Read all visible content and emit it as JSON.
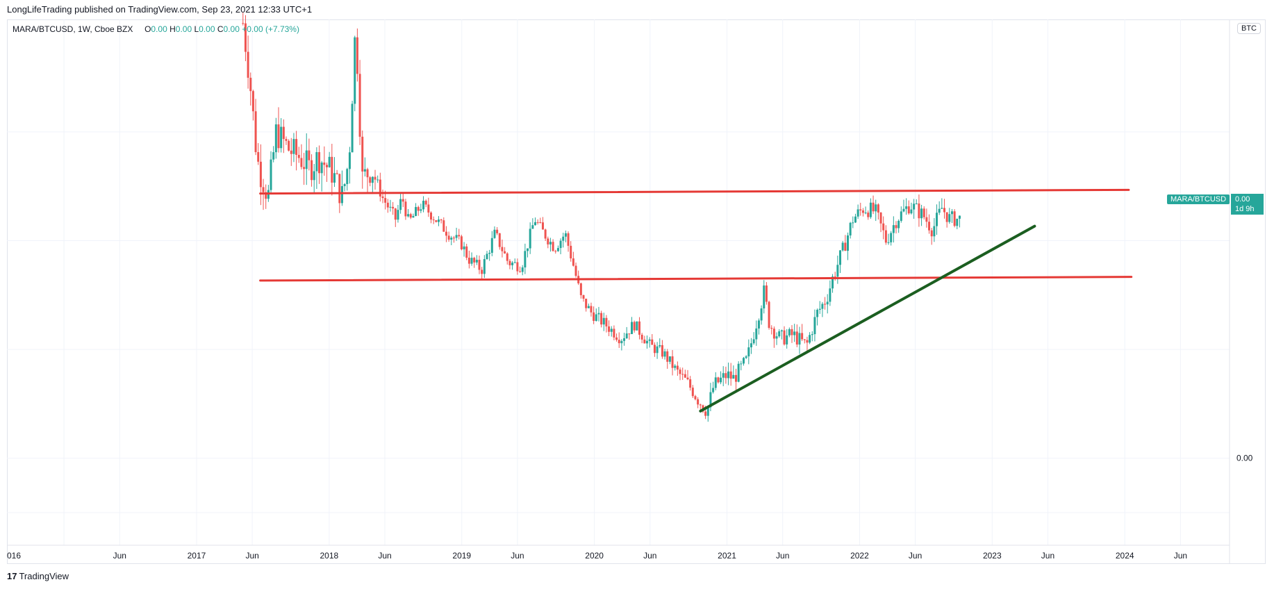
{
  "header": {
    "published_line": "LongLifeTrading published on TradingView.com, Sep 23, 2021 12:33 UTC+1"
  },
  "legend": {
    "symbol": "MARA/BTCUSD, 1W, Cboe BZX",
    "o_label": "O",
    "o_value": "0.00",
    "h_label": "H",
    "h_value": "0.00",
    "l_label": "L",
    "l_value": "0.00",
    "c_label": "C",
    "c_value": "0.00",
    "change": "+0.00 (+7.73%)"
  },
  "currency_badge": "BTC",
  "price_tag": {
    "symbol": "MARA/BTCUSD",
    "value": "0.00",
    "countdown": "1d 9h"
  },
  "footer": {
    "brand_mark": "17",
    "brand_name": "TradingView"
  },
  "colors": {
    "up": "#26a69a",
    "down": "#ef5350",
    "resistance": "#e53935",
    "trendline": "#1b5e20",
    "grid": "#f0f3fa"
  },
  "chart_data": {
    "type": "candlestick",
    "title": "",
    "x_ticks": [
      "016",
      "Jun",
      "2017",
      "Jun",
      "2018",
      "Jun",
      "2019",
      "Jun",
      "2020",
      "Jun",
      "2021",
      "Jun",
      "2022",
      "Jun",
      "2023",
      "Jun",
      "2024",
      "Jun"
    ],
    "x_tick_dates": [
      2016.0,
      2016.42,
      2017.0,
      2017.42,
      2018.0,
      2018.42,
      2019.0,
      2019.42,
      2020.0,
      2020.42,
      2021.0,
      2021.42,
      2022.0,
      2022.42,
      2023.0,
      2023.42,
      2024.0,
      2024.42
    ],
    "x_range": [
      2015.57,
      2024.79
    ],
    "y_ticks": [
      "0.00"
    ],
    "y_tick_values": [
      0
    ],
    "y_range": [
      -0.24,
      1.21
    ],
    "y_scale": "linear",
    "grid": true,
    "price_series": [
      [
        2017.35,
        1.2
      ],
      [
        2017.4,
        1.05
      ],
      [
        2017.45,
        0.85
      ],
      [
        2017.47,
        0.8
      ],
      [
        2017.5,
        0.77
      ],
      [
        2017.54,
        0.72
      ],
      [
        2017.6,
        0.9
      ],
      [
        2017.7,
        0.85
      ],
      [
        2017.78,
        0.83
      ],
      [
        2017.85,
        0.8
      ],
      [
        2017.92,
        0.83
      ],
      [
        2018.02,
        0.79
      ],
      [
        2018.1,
        0.72
      ],
      [
        2018.15,
        0.83
      ],
      [
        2018.2,
        1.2
      ],
      [
        2018.25,
        0.77
      ],
      [
        2018.32,
        0.8
      ],
      [
        2018.4,
        0.72
      ],
      [
        2018.5,
        0.66
      ],
      [
        2018.55,
        0.72
      ],
      [
        2018.6,
        0.65
      ],
      [
        2018.7,
        0.7
      ],
      [
        2018.8,
        0.66
      ],
      [
        2018.9,
        0.62
      ],
      [
        2019.0,
        0.59
      ],
      [
        2019.05,
        0.55
      ],
      [
        2019.15,
        0.52
      ],
      [
        2019.25,
        0.62
      ],
      [
        2019.35,
        0.54
      ],
      [
        2019.45,
        0.53
      ],
      [
        2019.55,
        0.66
      ],
      [
        2019.6,
        0.63
      ],
      [
        2019.7,
        0.58
      ],
      [
        2019.78,
        0.62
      ],
      [
        2019.85,
        0.52
      ],
      [
        2019.9,
        0.44
      ],
      [
        2019.98,
        0.4
      ],
      [
        2020.08,
        0.37
      ],
      [
        2020.2,
        0.33
      ],
      [
        2020.3,
        0.37
      ],
      [
        2020.42,
        0.31
      ],
      [
        2020.52,
        0.29
      ],
      [
        2020.62,
        0.24
      ],
      [
        2020.7,
        0.21
      ],
      [
        2020.78,
        0.16
      ],
      [
        2020.85,
        0.13
      ],
      [
        2020.9,
        0.2
      ],
      [
        2021.0,
        0.23
      ],
      [
        2021.05,
        0.22
      ],
      [
        2021.15,
        0.27
      ],
      [
        2021.28,
        0.46
      ],
      [
        2021.32,
        0.37
      ],
      [
        2021.4,
        0.33
      ],
      [
        2021.5,
        0.34
      ],
      [
        2021.6,
        0.31
      ],
      [
        2021.68,
        0.4
      ],
      [
        2021.75,
        0.44
      ],
      [
        2021.8,
        0.5
      ],
      [
        2021.88,
        0.58
      ],
      [
        2021.95,
        0.66
      ],
      [
        2022.03,
        0.69
      ],
      [
        2022.12,
        0.68
      ],
      [
        2022.2,
        0.6
      ],
      [
        2022.28,
        0.66
      ],
      [
        2022.38,
        0.7
      ],
      [
        2022.48,
        0.67
      ],
      [
        2022.55,
        0.63
      ],
      [
        2022.62,
        0.69
      ],
      [
        2022.68,
        0.66
      ],
      [
        2022.76,
        0.66
      ]
    ],
    "annotations": [
      {
        "type": "horizontal-line",
        "color": "resistance",
        "from": [
          2017.48,
          0.73
        ],
        "to": [
          2024.03,
          0.74
        ]
      },
      {
        "type": "horizontal-line",
        "color": "resistance",
        "from": [
          2017.48,
          0.49
        ],
        "to": [
          2024.05,
          0.5
        ]
      },
      {
        "type": "trend-line",
        "color": "trendline",
        "from": [
          2020.8,
          0.13
        ],
        "to": [
          2023.32,
          0.64
        ]
      }
    ]
  }
}
